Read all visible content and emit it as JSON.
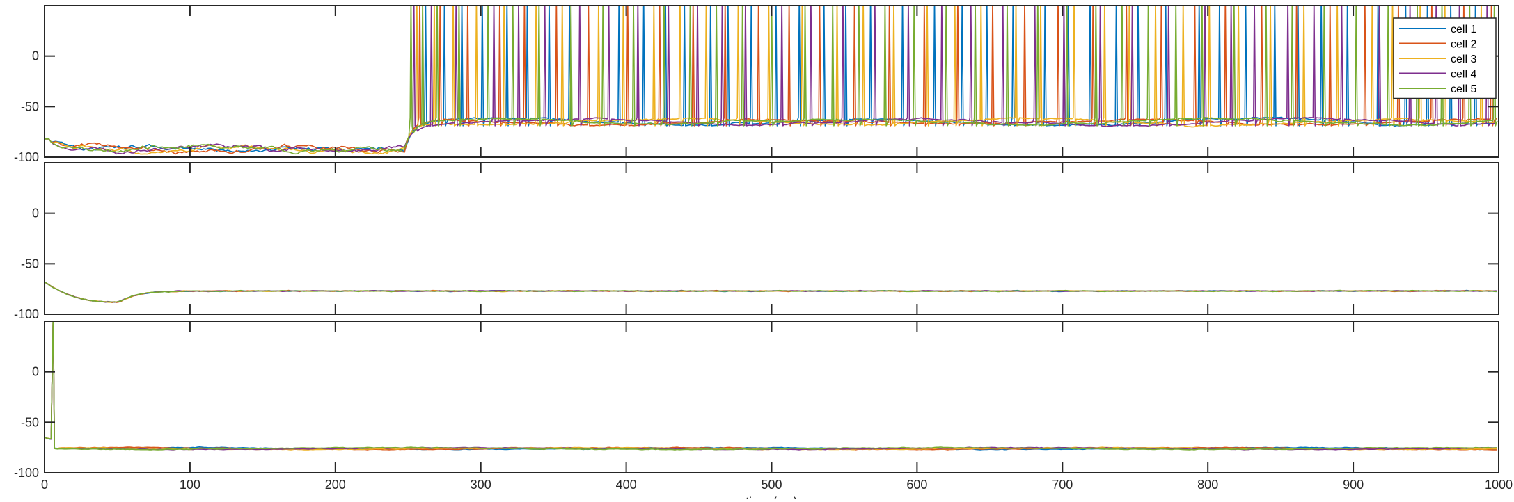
{
  "chart_data": [
    {
      "type": "line",
      "panel": "top",
      "title": "",
      "xlabel": "",
      "ylabel": "",
      "xlim": [
        0,
        1000
      ],
      "ylim": [
        -100,
        50
      ],
      "yticks": [
        0,
        -50,
        -100
      ],
      "xticks": [
        100,
        200,
        300,
        400,
        500,
        600,
        700,
        800,
        900
      ],
      "grid": false,
      "legend": {
        "placement": "top-right",
        "entries": [
          "cell 1",
          "cell 2",
          "cell 3",
          "cell 4",
          "cell 5"
        ]
      },
      "baseline_early": {
        "x_end": 248,
        "mean": -92,
        "range": [
          -97,
          -82
        ]
      },
      "depolarization_onset": 250,
      "baseline_late": {
        "mean": -65,
        "range": [
          -72,
          -58
        ]
      },
      "series": [
        {
          "name": "cell 1",
          "color": "#0072BD",
          "spike_times": [
            262,
            275,
            287,
            301,
            318,
            332,
            347,
            361,
            395,
            412,
            427,
            440,
            458,
            470,
            486,
            503,
            519,
            536,
            551,
            568,
            590,
            612,
            631,
            648,
            666,
            688,
            704,
            719,
            737,
            752,
            771,
            794,
            808,
            826,
            846,
            862,
            878,
            896,
            917,
            936,
            951,
            967,
            984
          ]
        },
        {
          "name": "cell 2",
          "color": "#D95319",
          "spike_times": [
            258,
            272,
            291,
            313,
            330,
            352,
            374,
            401,
            423,
            446,
            468,
            491,
            512,
            533,
            557,
            581,
            605,
            628,
            652,
            674,
            697,
            721,
            744,
            768,
            791,
            812,
            837,
            861,
            884,
            908,
            931,
            954,
            976,
            995
          ]
        },
        {
          "name": "cell 3",
          "color": "#EDB120",
          "spike_times": [
            256,
            268,
            281,
            297,
            316,
            338,
            356,
            381,
            398,
            419,
            437,
            455,
            477,
            498,
            521,
            545,
            563,
            584,
            607,
            626,
            644,
            668,
            685,
            708,
            729,
            746,
            764,
            783,
            801,
            821,
            843,
            866,
            889,
            913,
            927,
            946,
            963,
            988
          ]
        },
        {
          "name": "cell 4",
          "color": "#7E2F8E",
          "spike_times": [
            254,
            266,
            283,
            309,
            326,
            344,
            368,
            388,
            408,
            429,
            449,
            466,
            482,
            507,
            527,
            549,
            571,
            594,
            617,
            637,
            659,
            681,
            701,
            726,
            748,
            773,
            798,
            816,
            832,
            855,
            873,
            892,
            918,
            939,
            957,
            973,
            992
          ]
        },
        {
          "name": "cell 5",
          "color": "#77AC30",
          "spike_times": [
            252,
            260,
            270,
            285,
            305,
            322,
            340,
            362,
            384,
            405,
            426,
            444,
            462,
            480,
            500,
            523,
            542,
            560,
            578,
            598,
            620,
            640,
            662,
            683,
            703,
            723,
            741,
            759,
            778,
            796,
            818,
            840,
            858,
            880,
            902,
            924,
            944,
            961,
            980,
            997
          ]
        }
      ]
    },
    {
      "type": "line",
      "panel": "middle",
      "title": "",
      "xlabel": "",
      "ylabel": "",
      "xlim": [
        0,
        1000
      ],
      "ylim": [
        -100,
        50
      ],
      "yticks": [
        0,
        -50,
        -100
      ],
      "xticks": [
        100,
        200,
        300,
        400,
        500,
        600,
        700,
        800,
        900
      ],
      "grid": false,
      "start_value": -68,
      "trough": {
        "x": 50,
        "y": -88
      },
      "steady_state": -77,
      "series": [
        {
          "name": "cell 1",
          "color": "#0072BD"
        },
        {
          "name": "cell 2",
          "color": "#D95319"
        },
        {
          "name": "cell 3",
          "color": "#EDB120"
        },
        {
          "name": "cell 4",
          "color": "#7E2F8E"
        },
        {
          "name": "cell 5",
          "color": "#77AC30"
        }
      ]
    },
    {
      "type": "line",
      "panel": "bottom",
      "title": "",
      "xlabel": "time (ms)",
      "ylabel": "",
      "xlim": [
        0,
        1000
      ],
      "ylim": [
        -100,
        50
      ],
      "yticks": [
        0,
        -50,
        -100
      ],
      "xticks": [
        0,
        100,
        200,
        300,
        400,
        500,
        600,
        700,
        800,
        900,
        1000
      ],
      "grid": false,
      "start_value": -65,
      "early_spike_time": 6,
      "steady_state": -76,
      "series": [
        {
          "name": "cell 1",
          "color": "#0072BD"
        },
        {
          "name": "cell 2",
          "color": "#D95319"
        },
        {
          "name": "cell 3",
          "color": "#EDB120"
        },
        {
          "name": "cell 4",
          "color": "#7E2F8E"
        },
        {
          "name": "cell 5",
          "color": "#77AC30"
        }
      ]
    }
  ]
}
